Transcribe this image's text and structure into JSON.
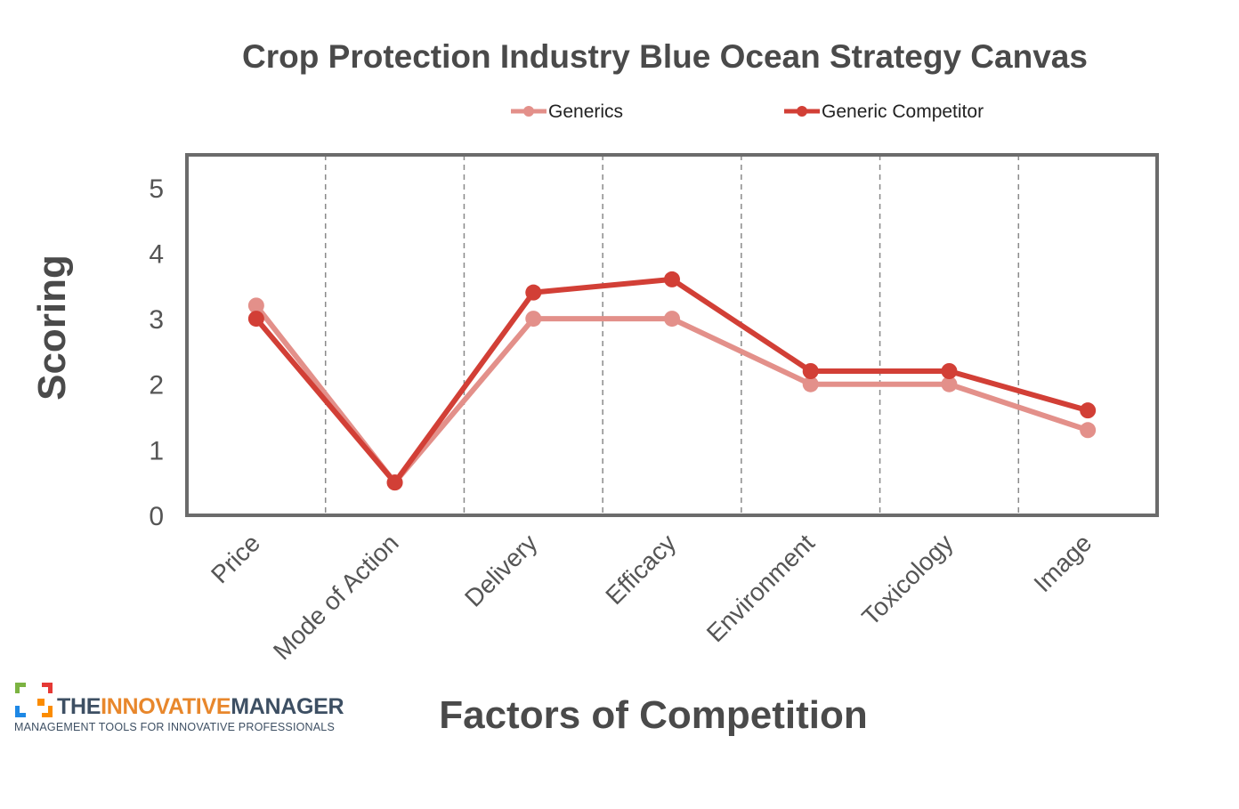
{
  "chart_data": {
    "type": "line",
    "title": "Crop Protection Industry Blue Ocean Strategy Canvas",
    "xlabel": "Factors of Competition",
    "ylabel": "Scoring",
    "categories": [
      "Price",
      "Mode of Action",
      "Delivery",
      "Efficacy",
      "Environment",
      "Toxicology",
      "Image"
    ],
    "ylim": [
      0,
      5.5
    ],
    "yticks": [
      0,
      1,
      2,
      3,
      4,
      5
    ],
    "grid": "vertical dashed",
    "legend_position": "top",
    "series": [
      {
        "name": "Generics",
        "color": "#e3908a",
        "values": [
          3.2,
          0.5,
          3.0,
          3.0,
          2.0,
          2.0,
          1.3
        ]
      },
      {
        "name": "Generic Competitor",
        "color": "#d23f36",
        "values": [
          3.0,
          0.5,
          3.4,
          3.6,
          2.2,
          2.2,
          1.6
        ]
      }
    ]
  },
  "logo": {
    "word_part1": "THE",
    "word_part2": "INNOVATIVE",
    "word_part3": "MANAGER",
    "tagline": "MANAGEMENT TOOLS FOR INNOVATIVE PROFESSIONALS"
  }
}
